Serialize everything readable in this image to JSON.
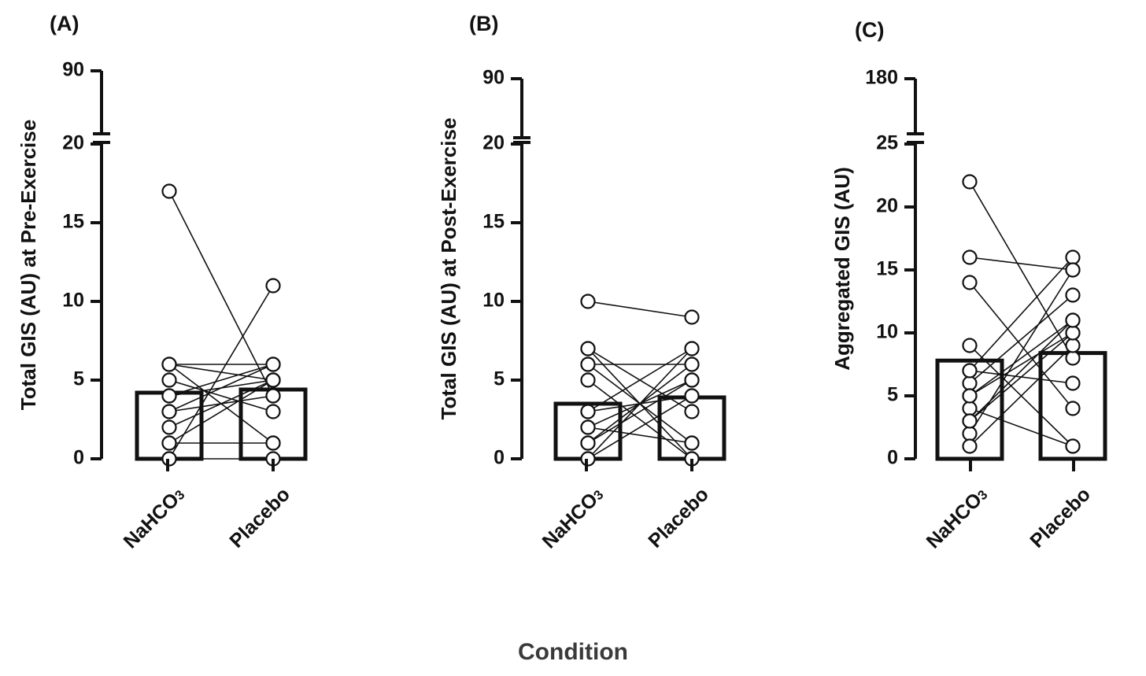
{
  "common_xlabel": "Condition",
  "chart_data": [
    {
      "type": "bar",
      "panel": "(A)",
      "ylabel": "Total GIS (AU) at Pre-Exercise",
      "categories": [
        "NaHCO",
        "Placebo"
      ],
      "category_subscript": [
        "3",
        ""
      ],
      "values": [
        4.2,
        4.4
      ],
      "ylim": [
        0,
        20
      ],
      "yticks": [
        0,
        5,
        10,
        15,
        20
      ],
      "broken_axis": {
        "upper_tick": 90
      },
      "pairs": [
        [
          17,
          4
        ],
        [
          6,
          6
        ],
        [
          6,
          5
        ],
        [
          5,
          3
        ],
        [
          4,
          5
        ],
        [
          3,
          6
        ],
        [
          2,
          5
        ],
        [
          1,
          1
        ],
        [
          0,
          0
        ],
        [
          6,
          1
        ],
        [
          0,
          11
        ],
        [
          4,
          6
        ],
        [
          1,
          5
        ],
        [
          3,
          4
        ]
      ],
      "grid": false,
      "legend": "none"
    },
    {
      "type": "bar",
      "panel": "(B)",
      "ylabel": "Total GIS (AU) at Post-Exercise",
      "categories": [
        "NaHCO",
        "Placebo"
      ],
      "category_subscript": [
        "3",
        ""
      ],
      "values": [
        3.5,
        3.9
      ],
      "ylim": [
        0,
        20
      ],
      "yticks": [
        0,
        5,
        10,
        15,
        20
      ],
      "broken_axis": {
        "upper_tick": 90
      },
      "pairs": [
        [
          10,
          9
        ],
        [
          7,
          0
        ],
        [
          6,
          1
        ],
        [
          6,
          6
        ],
        [
          5,
          0
        ],
        [
          3,
          7
        ],
        [
          2,
          5
        ],
        [
          1,
          6
        ],
        [
          0,
          4
        ],
        [
          7,
          3
        ],
        [
          0,
          7
        ],
        [
          2,
          1
        ],
        [
          1,
          5
        ],
        [
          3,
          4
        ]
      ],
      "grid": false,
      "legend": "none"
    },
    {
      "type": "bar",
      "panel": "(C)",
      "ylabel": "Aggregated GIS (AU)",
      "categories": [
        "NaHCO",
        "Placebo"
      ],
      "category_subscript": [
        "3",
        ""
      ],
      "values": [
        7.8,
        8.4
      ],
      "ylim": [
        0,
        25
      ],
      "yticks": [
        0,
        5,
        10,
        15,
        20,
        25
      ],
      "broken_axis": {
        "upper_tick": 180
      },
      "pairs": [
        [
          22,
          8
        ],
        [
          16,
          15
        ],
        [
          14,
          4
        ],
        [
          9,
          1
        ],
        [
          7,
          16
        ],
        [
          6,
          13
        ],
        [
          5,
          11
        ],
        [
          4,
          1
        ],
        [
          3,
          10
        ],
        [
          2,
          15
        ],
        [
          1,
          9
        ],
        [
          7,
          6
        ],
        [
          5,
          10
        ],
        [
          3,
          11
        ]
      ],
      "grid": false,
      "legend": "none"
    }
  ]
}
